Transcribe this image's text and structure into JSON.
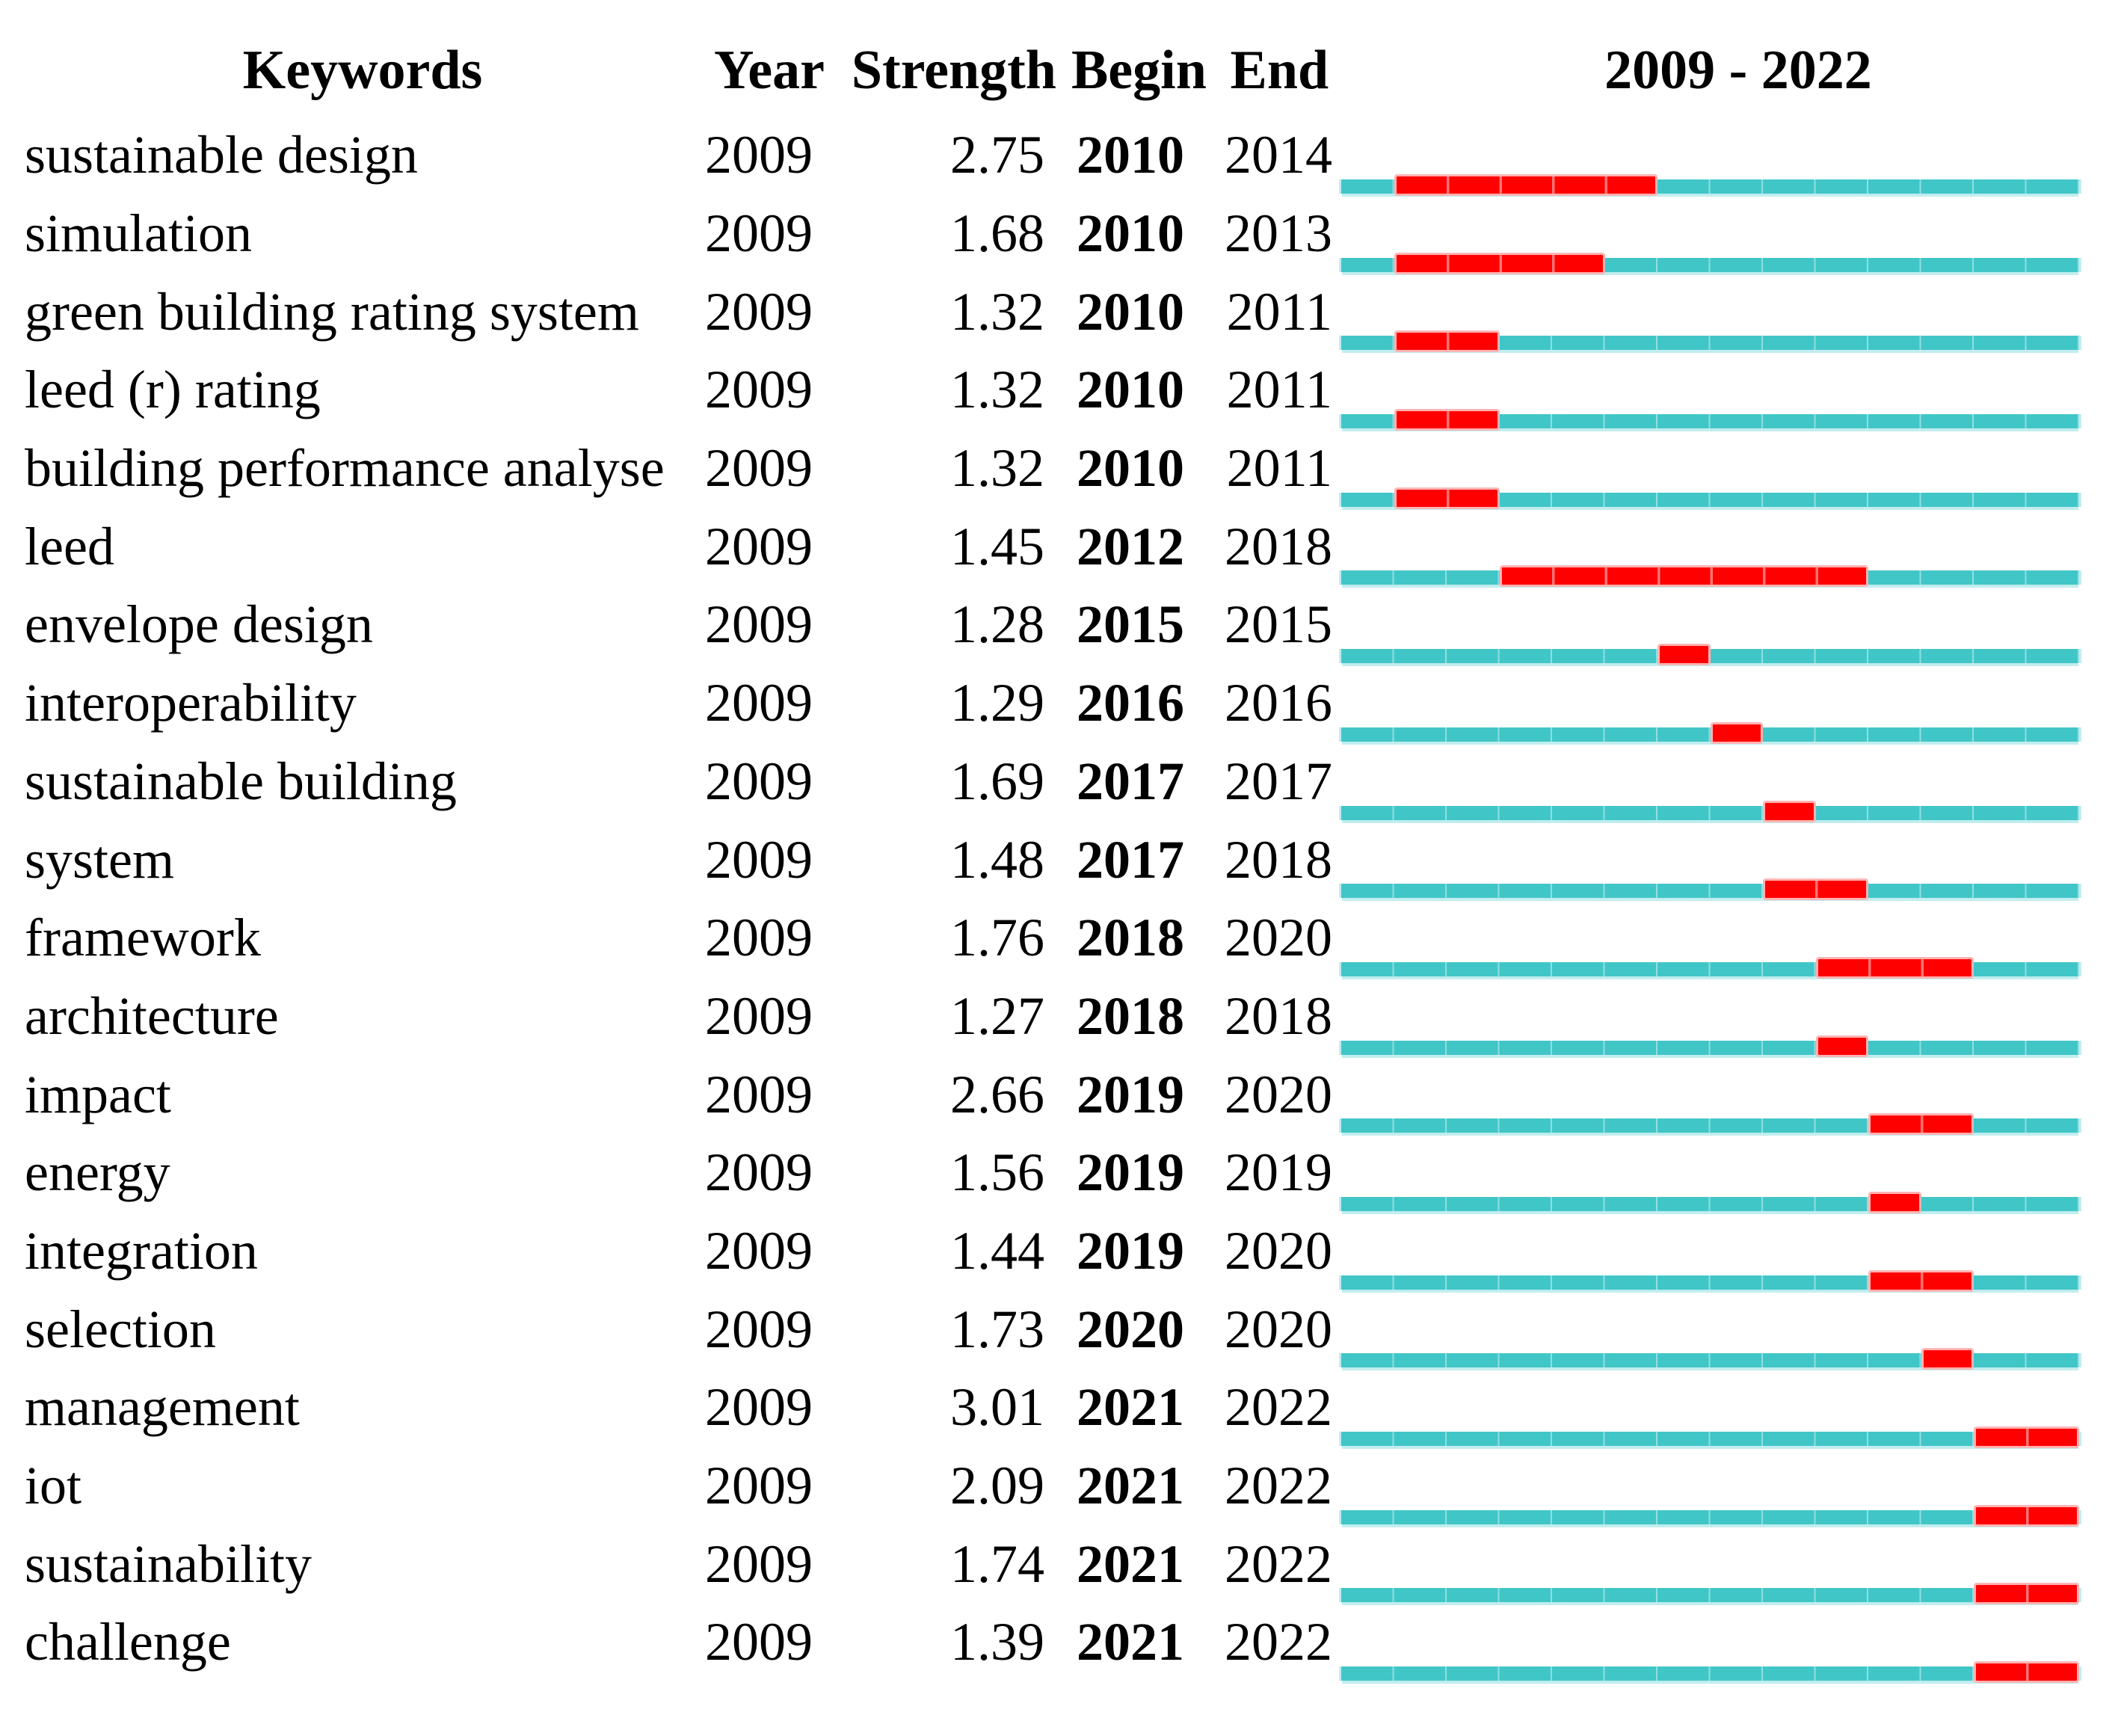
{
  "header": {
    "keywords": "Keywords",
    "year": "Year",
    "strength": "Strength",
    "begin": "Begin",
    "end": "End",
    "timeline": "2009 - 2022"
  },
  "colors": {
    "bar_teal": "#41c6c8",
    "bar_teal_light": "#c2edee",
    "bar_teal_divider": "#8fdfe1",
    "burst_red": "#ff0000",
    "burst_red_border": "#ffb3b3"
  },
  "chart_data": {
    "type": "table",
    "description": "Keyword citation burst table: each row lists a keyword with burst strength and begin/end years, plus a 2009-2022 timeline bar (teal) with the burst interval highlighted in red",
    "columns": [
      "Keywords",
      "Year",
      "Strength",
      "Begin",
      "End",
      "2009 - 2022"
    ],
    "timeline": {
      "start_year": 2009,
      "end_year": 2022
    },
    "rows": [
      {
        "keyword": "sustainable design",
        "year": "2009",
        "strength": "2.75",
        "begin": 2010,
        "end": 2014
      },
      {
        "keyword": "simulation",
        "year": "2009",
        "strength": "1.68",
        "begin": 2010,
        "end": 2013
      },
      {
        "keyword": "green building rating system",
        "year": "2009",
        "strength": "1.32",
        "begin": 2010,
        "end": 2011
      },
      {
        "keyword": "leed (r) rating",
        "year": "2009",
        "strength": "1.32",
        "begin": 2010,
        "end": 2011
      },
      {
        "keyword": "building performance analyse",
        "year": "2009",
        "strength": "1.32",
        "begin": 2010,
        "end": 2011
      },
      {
        "keyword": "leed",
        "year": "2009",
        "strength": "1.45",
        "begin": 2012,
        "end": 2018
      },
      {
        "keyword": "envelope design",
        "year": "2009",
        "strength": "1.28",
        "begin": 2015,
        "end": 2015
      },
      {
        "keyword": "interoperability",
        "year": "2009",
        "strength": "1.29",
        "begin": 2016,
        "end": 2016
      },
      {
        "keyword": "sustainable building",
        "year": "2009",
        "strength": "1.69",
        "begin": 2017,
        "end": 2017
      },
      {
        "keyword": "system",
        "year": "2009",
        "strength": "1.48",
        "begin": 2017,
        "end": 2018
      },
      {
        "keyword": "framework",
        "year": "2009",
        "strength": "1.76",
        "begin": 2018,
        "end": 2020
      },
      {
        "keyword": "architecture",
        "year": "2009",
        "strength": "1.27",
        "begin": 2018,
        "end": 2018
      },
      {
        "keyword": "impact",
        "year": "2009",
        "strength": "2.66",
        "begin": 2019,
        "end": 2020
      },
      {
        "keyword": "energy",
        "year": "2009",
        "strength": "1.56",
        "begin": 2019,
        "end": 2019
      },
      {
        "keyword": "integration",
        "year": "2009",
        "strength": "1.44",
        "begin": 2019,
        "end": 2020
      },
      {
        "keyword": "selection",
        "year": "2009",
        "strength": "1.73",
        "begin": 2020,
        "end": 2020
      },
      {
        "keyword": "management",
        "year": "2009",
        "strength": "3.01",
        "begin": 2021,
        "end": 2022
      },
      {
        "keyword": "iot",
        "year": "2009",
        "strength": "2.09",
        "begin": 2021,
        "end": 2022
      },
      {
        "keyword": "sustainability",
        "year": "2009",
        "strength": "1.74",
        "begin": 2021,
        "end": 2022
      },
      {
        "keyword": "challenge",
        "year": "2009",
        "strength": "1.39",
        "begin": 2021,
        "end": 2022
      }
    ]
  }
}
